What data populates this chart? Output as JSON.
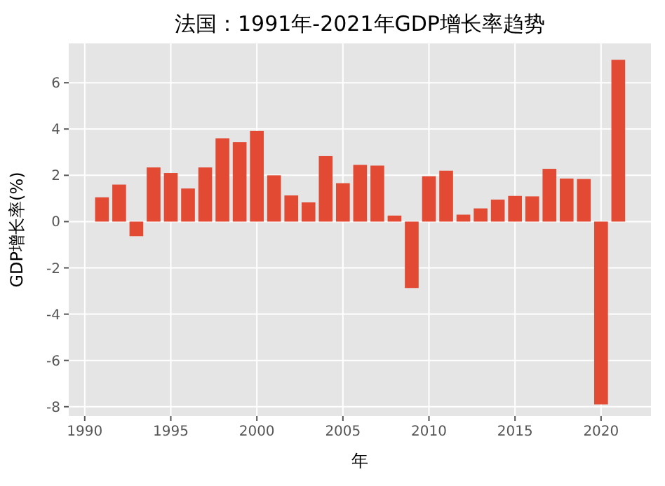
{
  "chart_data": {
    "type": "bar",
    "title": "法国：1991年-2021年GDP增长率趋势",
    "xlabel": "年",
    "ylabel": "GDP增长率(%)",
    "x": [
      1991,
      1992,
      1993,
      1994,
      1995,
      1996,
      1997,
      1998,
      1999,
      2000,
      2001,
      2002,
      2003,
      2004,
      2005,
      2006,
      2007,
      2008,
      2009,
      2010,
      2011,
      2012,
      2013,
      2014,
      2015,
      2016,
      2017,
      2018,
      2019,
      2020,
      2021
    ],
    "values": [
      1.05,
      1.6,
      -0.63,
      2.34,
      2.1,
      1.43,
      2.34,
      3.6,
      3.43,
      3.92,
      2.0,
      1.13,
      0.83,
      2.83,
      1.66,
      2.45,
      2.42,
      0.26,
      -2.87,
      1.96,
      2.2,
      0.3,
      0.57,
      0.95,
      1.11,
      1.09,
      2.28,
      1.86,
      1.84,
      -7.9,
      6.99
    ],
    "color": "#e24a33",
    "xlim": [
      1989.07,
      2022.9
    ],
    "ylim": [
      -8.4,
      7.7
    ],
    "xticks": [
      1990,
      1995,
      2000,
      2005,
      2010,
      2015,
      2020
    ],
    "yticks": [
      -8,
      -6,
      -4,
      -2,
      0,
      2,
      4,
      6
    ],
    "grid": true
  }
}
